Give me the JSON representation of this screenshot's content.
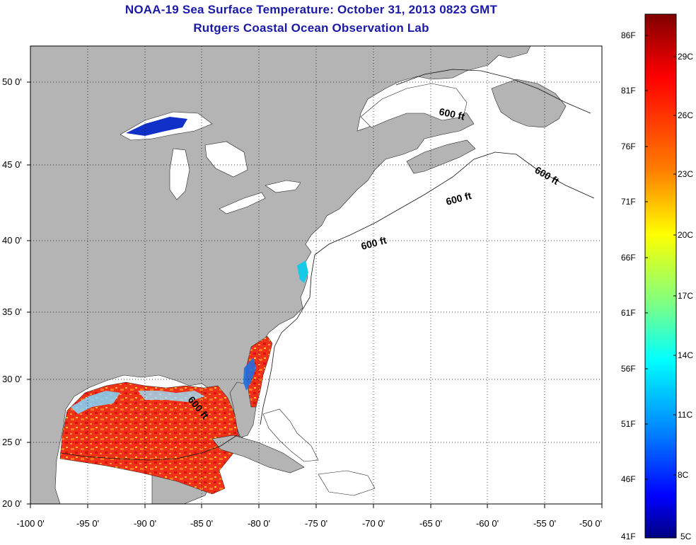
{
  "header": {
    "title": "NOAA-19 Sea Surface Temperature:  October 31, 2013 0823 GMT",
    "subtitle": "Rutgers Coastal Ocean Observation Lab"
  },
  "map": {
    "lat_ticks": [
      "50 0'",
      "45 0'",
      "40 0'",
      "35 0'",
      "30 0'",
      "25 0'",
      "20 0'"
    ],
    "lon_ticks": [
      "-100 0'",
      "-95 0'",
      "-90 0'",
      "-85 0'",
      "-80 0'",
      "-75 0'",
      "-70 0'",
      "-65 0'",
      "-60 0'",
      "-55 0'",
      "-50 0'"
    ],
    "depth_labels": [
      "600 ft",
      "600 ft",
      "600 ft",
      "600 ft",
      "600 ft"
    ],
    "colors": {
      "land": "#b4b4b4",
      "ocean": "#ffffff",
      "grid": "#000000"
    }
  },
  "colorbar": {
    "fahrenheit": [
      "86F",
      "81F",
      "76F",
      "71F",
      "66F",
      "61F",
      "56F",
      "51F",
      "46F",
      "41F"
    ],
    "celsius": [
      "29C",
      "26C",
      "23C",
      "20C",
      "17C",
      "14C",
      "11C",
      "8C",
      "5C"
    ],
    "gradient": [
      "#800000",
      "#ff0000",
      "#ff8000",
      "#ffff00",
      "#80ff80",
      "#00ffff",
      "#0080ff",
      "#0000ff",
      "#000080"
    ]
  }
}
